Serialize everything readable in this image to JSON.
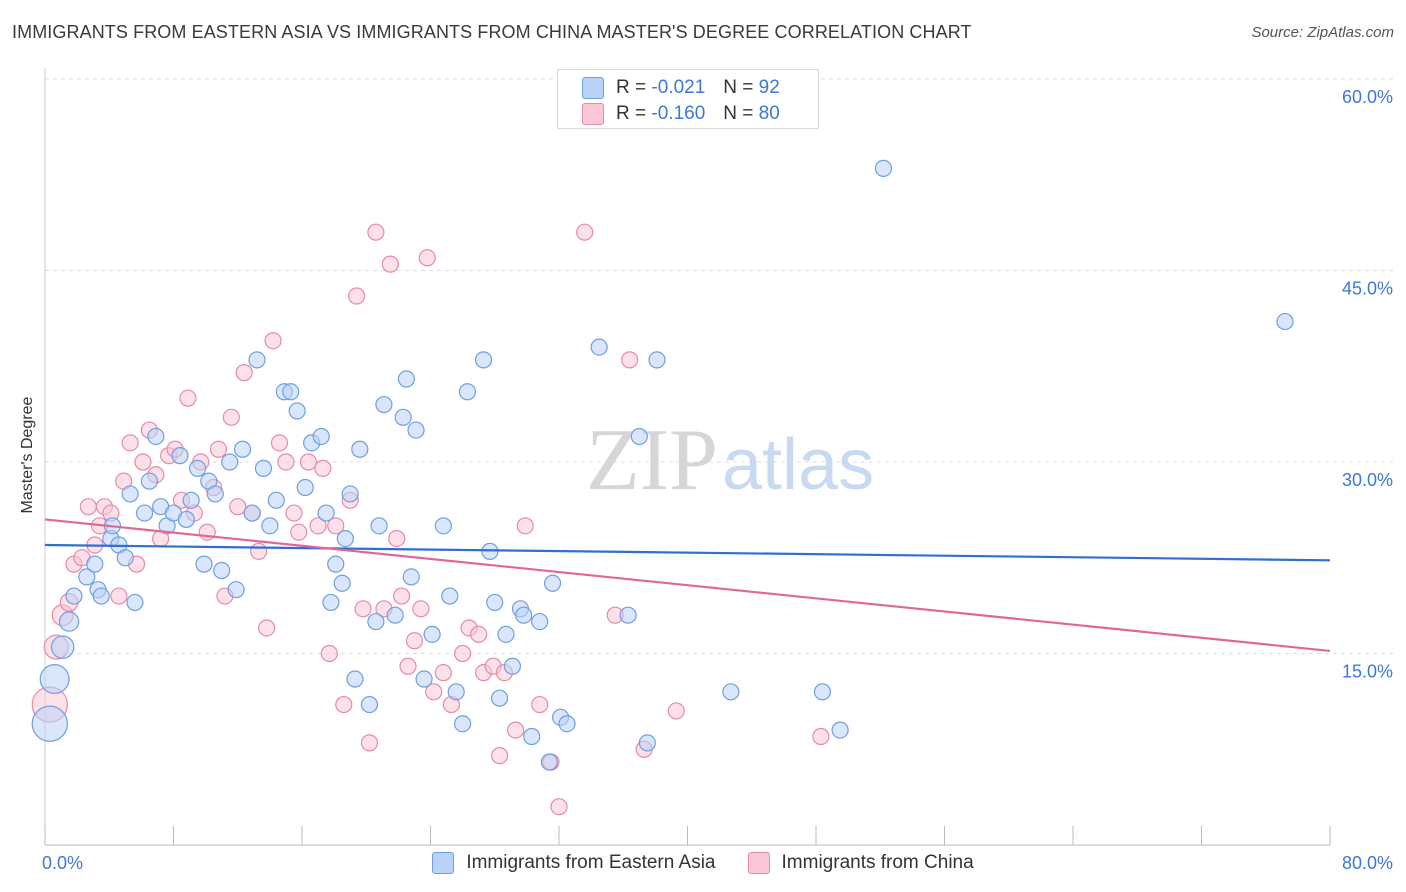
{
  "title": "IMMIGRANTS FROM EASTERN ASIA VS IMMIGRANTS FROM CHINA MASTER'S DEGREE CORRELATION CHART",
  "source": "Source: ZipAtlas.com",
  "watermark": {
    "zip": "ZIP",
    "atlas": "atlas"
  },
  "legend_top": [
    {
      "r_label": "R =",
      "r_value": "-0.021",
      "n_label": "N =",
      "n_value": "92",
      "color": "#6f9fe0"
    },
    {
      "r_label": "R =",
      "r_value": "-0.160",
      "n_label": "N =",
      "n_value": "80",
      "color": "#e98aa8"
    }
  ],
  "colors": {
    "blue_fill": "#b9d2f7",
    "blue_stroke": "#6f9fe0",
    "blue_line": "#2f6fcf",
    "pink_fill": "#fac8d6",
    "pink_stroke": "#e98aa8",
    "pink_line": "#e2659a",
    "tick_label": "#3d78d8",
    "grid": "#dddddd"
  },
  "chart_data": {
    "type": "scatter",
    "xlabel": "",
    "ylabel": "Master's Degree",
    "xlim": [
      0,
      80
    ],
    "ylim": [
      0,
      60
    ],
    "x_tick_labels": [
      "0.0%",
      "80.0%"
    ],
    "y_ticks": [
      15,
      30,
      45,
      60
    ],
    "y_tick_labels": [
      "15.0%",
      "30.0%",
      "45.0%",
      "60.0%"
    ],
    "grid": "horizontal dashed",
    "legend_position": "top-center and bottom",
    "series": [
      {
        "name": "Immigrants from Eastern Asia",
        "color": "#6f9fe0",
        "trend": {
          "x": [
            0,
            80
          ],
          "y": [
            23.5,
            22.3
          ]
        },
        "points": [
          [
            0.3,
            9.5,
            2.2
          ],
          [
            0.6,
            13,
            1.8
          ],
          [
            1.1,
            15.5,
            1.4
          ],
          [
            1.5,
            17.5,
            1.2
          ],
          [
            1.8,
            19.5,
            1
          ],
          [
            2.6,
            21,
            1
          ],
          [
            3.1,
            22,
            1
          ],
          [
            3.3,
            20,
            1
          ],
          [
            3.5,
            19.5,
            1
          ],
          [
            4.1,
            24,
            1
          ],
          [
            4.2,
            25,
            1
          ],
          [
            4.6,
            23.5,
            1
          ],
          [
            5,
            22.5,
            1
          ],
          [
            5.3,
            27.5,
            1
          ],
          [
            5.6,
            19,
            1
          ],
          [
            6.2,
            26,
            1
          ],
          [
            6.5,
            28.5,
            1
          ],
          [
            6.9,
            32,
            1
          ],
          [
            7.2,
            26.5,
            1
          ],
          [
            7.6,
            25,
            1
          ],
          [
            8,
            26,
            1
          ],
          [
            8.4,
            30.5,
            1
          ],
          [
            8.8,
            25.5,
            1
          ],
          [
            9.1,
            27,
            1
          ],
          [
            9.5,
            29.5,
            1
          ],
          [
            9.9,
            22,
            1
          ],
          [
            10.2,
            28.5,
            1
          ],
          [
            10.6,
            27.5,
            1
          ],
          [
            11,
            21.5,
            1
          ],
          [
            11.5,
            30,
            1
          ],
          [
            11.9,
            20,
            1
          ],
          [
            12.3,
            31,
            1
          ],
          [
            12.9,
            26,
            1
          ],
          [
            13.2,
            38,
            1
          ],
          [
            13.6,
            29.5,
            1
          ],
          [
            14,
            25,
            1
          ],
          [
            14.4,
            27,
            1
          ],
          [
            14.9,
            35.5,
            1
          ],
          [
            15.3,
            35.5,
            1
          ],
          [
            15.7,
            34,
            1
          ],
          [
            16.2,
            28,
            1
          ],
          [
            16.6,
            31.5,
            1
          ],
          [
            17.2,
            32,
            1
          ],
          [
            17.5,
            26,
            1
          ],
          [
            17.8,
            19,
            1
          ],
          [
            18.1,
            22,
            1
          ],
          [
            18.5,
            20.5,
            1
          ],
          [
            18.7,
            24,
            1
          ],
          [
            19,
            27.5,
            1
          ],
          [
            19.3,
            13,
            1
          ],
          [
            19.6,
            31,
            1
          ],
          [
            20.2,
            11,
            1
          ],
          [
            20.6,
            17.5,
            1
          ],
          [
            20.8,
            25,
            1
          ],
          [
            21.1,
            34.5,
            1
          ],
          [
            21.8,
            18,
            1
          ],
          [
            22.3,
            33.5,
            1
          ],
          [
            22.5,
            36.5,
            1
          ],
          [
            22.8,
            21,
            1
          ],
          [
            23.1,
            32.5,
            1
          ],
          [
            23.6,
            13,
            1
          ],
          [
            24.1,
            16.5,
            1
          ],
          [
            24.8,
            25,
            1
          ],
          [
            25.2,
            19.5,
            1
          ],
          [
            25.6,
            12,
            1
          ],
          [
            26,
            9.5,
            1
          ],
          [
            26.3,
            35.5,
            1
          ],
          [
            27.3,
            38,
            1
          ],
          [
            27.7,
            23,
            1
          ],
          [
            28,
            19,
            1
          ],
          [
            28.3,
            11.5,
            1
          ],
          [
            28.7,
            16.5,
            1
          ],
          [
            29.1,
            14,
            1
          ],
          [
            29.6,
            18.5,
            1
          ],
          [
            29.8,
            18,
            1
          ],
          [
            30.3,
            8.5,
            1
          ],
          [
            30.8,
            17.5,
            1
          ],
          [
            31.4,
            6.5,
            1
          ],
          [
            31.6,
            20.5,
            1
          ],
          [
            32.1,
            10,
            1
          ],
          [
            32.5,
            9.5,
            1
          ],
          [
            34.5,
            39,
            1
          ],
          [
            36.3,
            18,
            1
          ],
          [
            37,
            32,
            1
          ],
          [
            37.5,
            8,
            1
          ],
          [
            38.1,
            38,
            1
          ],
          [
            42.7,
            12,
            1
          ],
          [
            48.4,
            12,
            1
          ],
          [
            49.5,
            9,
            1
          ],
          [
            52.2,
            53,
            1
          ],
          [
            77.2,
            41,
            1
          ]
        ]
      },
      {
        "name": "Immigrants from China",
        "color": "#e98aa8",
        "trend": {
          "x": [
            0,
            80
          ],
          "y": [
            25.5,
            15.2
          ]
        },
        "points": [
          [
            0.3,
            11,
            2.2
          ],
          [
            0.7,
            15.5,
            1.5
          ],
          [
            1.1,
            18,
            1.3
          ],
          [
            1.5,
            19,
            1.1
          ],
          [
            1.8,
            22,
            1
          ],
          [
            2.3,
            22.5,
            1
          ],
          [
            2.7,
            26.5,
            1
          ],
          [
            3.1,
            23.5,
            1
          ],
          [
            3.4,
            25,
            1
          ],
          [
            3.7,
            26.5,
            1
          ],
          [
            4.1,
            26,
            1
          ],
          [
            4.6,
            19.5,
            1
          ],
          [
            4.9,
            28.5,
            1
          ],
          [
            5.3,
            31.5,
            1
          ],
          [
            5.7,
            22,
            1
          ],
          [
            6.1,
            30,
            1
          ],
          [
            6.5,
            32.5,
            1
          ],
          [
            6.9,
            29,
            1
          ],
          [
            7.2,
            24,
            1
          ],
          [
            7.7,
            30.5,
            1
          ],
          [
            8.1,
            31,
            1
          ],
          [
            8.5,
            27,
            1
          ],
          [
            8.9,
            35,
            1
          ],
          [
            9.3,
            26,
            1
          ],
          [
            9.7,
            30,
            1
          ],
          [
            10.1,
            24.5,
            1
          ],
          [
            10.5,
            28,
            1
          ],
          [
            10.8,
            31,
            1
          ],
          [
            11.2,
            19.5,
            1
          ],
          [
            11.6,
            33.5,
            1
          ],
          [
            12,
            26.5,
            1
          ],
          [
            12.4,
            37,
            1
          ],
          [
            12.9,
            26,
            1
          ],
          [
            13.3,
            23,
            1
          ],
          [
            13.8,
            17,
            1
          ],
          [
            14.2,
            39.5,
            1
          ],
          [
            14.6,
            31.5,
            1
          ],
          [
            15,
            30,
            1
          ],
          [
            15.5,
            26,
            1
          ],
          [
            15.8,
            24.5,
            1
          ],
          [
            16.4,
            30,
            1
          ],
          [
            17,
            25,
            1
          ],
          [
            17.3,
            29.5,
            1
          ],
          [
            17.7,
            15,
            1
          ],
          [
            18.1,
            25,
            1
          ],
          [
            18.6,
            11,
            1
          ],
          [
            19,
            27,
            1
          ],
          [
            19.4,
            43,
            1
          ],
          [
            19.8,
            18.5,
            1
          ],
          [
            20.2,
            8,
            1
          ],
          [
            20.6,
            48,
            1
          ],
          [
            21.1,
            18.5,
            1
          ],
          [
            21.5,
            45.5,
            1
          ],
          [
            21.9,
            24,
            1
          ],
          [
            22.2,
            19.5,
            1
          ],
          [
            22.6,
            14,
            1
          ],
          [
            23,
            16,
            1
          ],
          [
            23.4,
            18.5,
            1
          ],
          [
            23.8,
            46,
            1
          ],
          [
            24.2,
            12,
            1
          ],
          [
            24.8,
            13.5,
            1
          ],
          [
            25.3,
            11,
            1
          ],
          [
            26,
            15,
            1
          ],
          [
            26.4,
            17,
            1
          ],
          [
            27,
            16.5,
            1
          ],
          [
            27.3,
            13.5,
            1
          ],
          [
            27.9,
            14,
            1
          ],
          [
            28.3,
            7,
            1
          ],
          [
            28.6,
            13.5,
            1
          ],
          [
            29.3,
            9,
            1
          ],
          [
            29.9,
            25,
            1
          ],
          [
            30.8,
            11,
            1
          ],
          [
            31.5,
            6.5,
            1
          ],
          [
            32,
            3,
            1
          ],
          [
            33.6,
            48,
            1
          ],
          [
            35.5,
            18,
            1
          ],
          [
            36.4,
            38,
            1
          ],
          [
            37.3,
            7.5,
            1
          ],
          [
            39.3,
            10.5,
            1
          ],
          [
            48.3,
            8.5,
            1
          ]
        ]
      }
    ]
  }
}
